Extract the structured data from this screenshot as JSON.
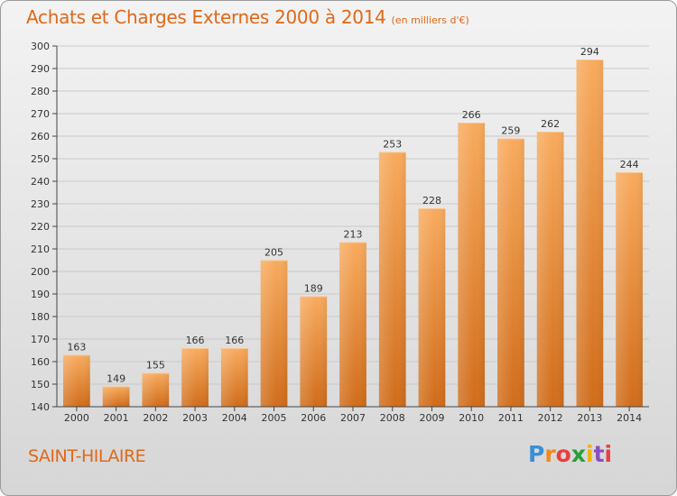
{
  "title": "Achats et Charges Externes 2000 à 2014",
  "subtitle": "(en milliers d'€)",
  "location": "SAINT-HILAIRE",
  "logo_text": "Proxiti",
  "colors": {
    "title": "#e06818",
    "bar_light": "#f7a85a",
    "bar_dark": "#d26f1c",
    "axis": "#444444"
  },
  "logo_colors": [
    "#3a8fd8",
    "#f08a1a",
    "#e84040",
    "#2a9e3a",
    "#f0b400",
    "#8a4fc0",
    "#e84040"
  ],
  "chart_data": {
    "type": "bar",
    "title": "Achats et Charges Externes 2000 à 2014",
    "subtitle": "(en milliers d'€)",
    "categories": [
      "2000",
      "2001",
      "2002",
      "2003",
      "2004",
      "2005",
      "2006",
      "2007",
      "2008",
      "2009",
      "2010",
      "2011",
      "2012",
      "2013",
      "2014"
    ],
    "values": [
      163,
      149,
      155,
      166,
      166,
      205,
      189,
      213,
      253,
      228,
      266,
      259,
      262,
      294,
      244
    ],
    "ylim": [
      140,
      300
    ],
    "yticks": [
      140,
      150,
      160,
      170,
      180,
      190,
      200,
      210,
      220,
      230,
      240,
      250,
      260,
      270,
      280,
      290,
      300
    ],
    "grid": true,
    "xlabel": "",
    "ylabel": ""
  }
}
